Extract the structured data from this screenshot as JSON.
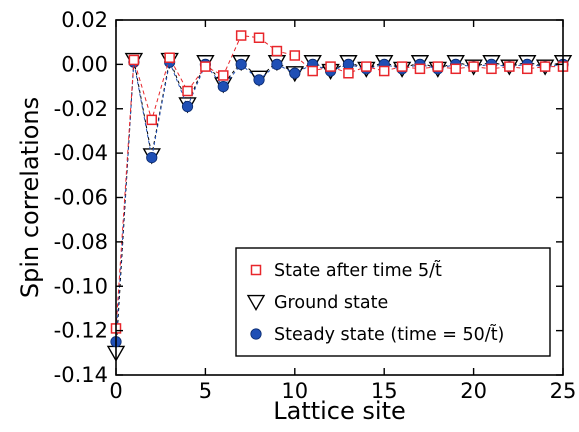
{
  "chart_data": {
    "type": "scatter",
    "xlabel": "Lattice site",
    "ylabel": "Spin correlations",
    "xlim": [
      0,
      25
    ],
    "ylim": [
      -0.14,
      0.02
    ],
    "xticks": [
      0,
      5,
      10,
      15,
      20,
      25
    ],
    "yticks": [
      0.02,
      0.0,
      -0.02,
      -0.04,
      -0.06,
      -0.08,
      -0.1,
      -0.12,
      -0.14
    ],
    "ytick_labels": [
      "0.02",
      "0.00",
      "-0.02",
      "-0.04",
      "-0.06",
      "-0.08",
      "-0.10",
      "-0.12",
      "-0.14"
    ],
    "xtick_labels": [
      "0",
      "5",
      "10",
      "15",
      "20",
      "25"
    ],
    "grid": false,
    "legend_position": "bottom-right",
    "series": [
      {
        "name": "State after time 5/t̃",
        "marker": "open-square",
        "color": "#e8262b",
        "x": [
          0,
          1,
          2,
          3,
          4,
          5,
          6,
          7,
          8,
          9,
          10,
          11,
          12,
          13,
          14,
          15,
          16,
          17,
          18,
          19,
          20,
          21,
          22,
          23,
          24,
          25
        ],
        "y": [
          -0.119,
          0.002,
          -0.025,
          0.003,
          -0.012,
          -0.001,
          -0.005,
          0.013,
          0.012,
          0.006,
          0.004,
          -0.003,
          -0.001,
          -0.004,
          -0.001,
          -0.003,
          -0.001,
          -0.002,
          -0.001,
          -0.002,
          -0.001,
          -0.002,
          -0.001,
          -0.002,
          -0.001,
          -0.001
        ]
      },
      {
        "name": "Ground state",
        "marker": "open-down-triangle",
        "color": "#000000",
        "x": [
          0,
          1,
          2,
          3,
          4,
          5,
          6,
          7,
          8,
          9,
          10,
          11,
          12,
          13,
          14,
          15,
          16,
          17,
          18,
          19,
          20,
          21,
          22,
          23,
          24,
          25
        ],
        "y": [
          -0.13,
          0.002,
          -0.041,
          0.002,
          -0.018,
          0.001,
          -0.009,
          0.001,
          -0.006,
          0.001,
          -0.004,
          0.001,
          -0.003,
          0.001,
          -0.002,
          0.001,
          -0.002,
          0.001,
          -0.002,
          0.001,
          -0.001,
          0.001,
          -0.001,
          0.001,
          -0.001,
          0.001
        ]
      },
      {
        "name": "Steady state (time = 50/t̃)",
        "marker": "filled-circle",
        "color": "#1f4fb5",
        "x": [
          0,
          1,
          2,
          3,
          4,
          5,
          6,
          7,
          8,
          9,
          10,
          11,
          12,
          13,
          14,
          15,
          16,
          17,
          18,
          19,
          20,
          21,
          22,
          23,
          24,
          25
        ],
        "y": [
          -0.125,
          0.001,
          -0.042,
          0.001,
          -0.019,
          0.0,
          -0.01,
          0.0,
          -0.007,
          0.0,
          -0.004,
          0.0,
          -0.003,
          0.0,
          -0.002,
          0.0,
          -0.002,
          0.0,
          -0.002,
          0.0,
          -0.001,
          0.0,
          -0.001,
          0.0,
          -0.001,
          0.0
        ]
      }
    ]
  }
}
